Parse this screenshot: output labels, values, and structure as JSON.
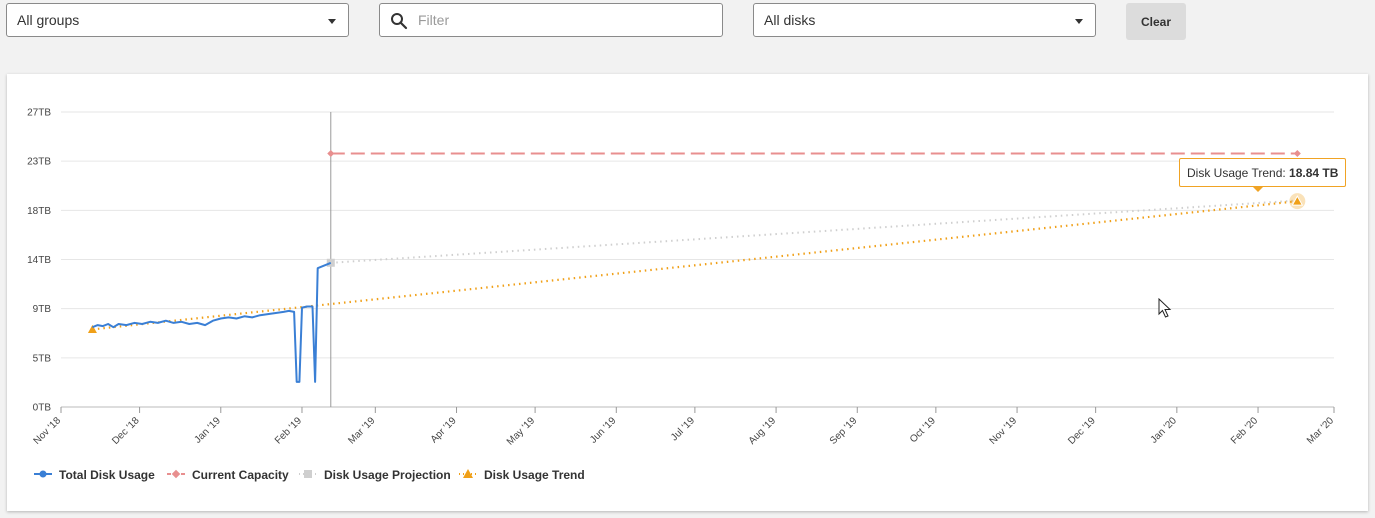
{
  "toolbar": {
    "groups": {
      "value": "All groups"
    },
    "filter": {
      "placeholder": "Filter"
    },
    "disks": {
      "value": "All disks"
    },
    "clear_label": "Clear"
  },
  "tooltip": {
    "label": "Disk Usage Trend: ",
    "value": "18.84 TB"
  },
  "colors": {
    "usage": "#3a7fd5",
    "capacity": "#e88f8f",
    "projection": "#cfcfcf",
    "trend": "#f0a018"
  },
  "chart_data": {
    "type": "line",
    "xlabel": "",
    "ylabel": "",
    "y_ticks": [
      "0TB",
      "5TB",
      "9TB",
      "14TB",
      "18TB",
      "23TB",
      "27TB"
    ],
    "x_ticks": [
      "Nov '18",
      "Dec '18",
      "Jan '19",
      "Feb '19",
      "Mar '19",
      "Apr '19",
      "May '19",
      "Jun '19",
      "Jul '19",
      "Aug '19",
      "Sep '19",
      "Oct '19",
      "Nov '19",
      "Dec '19",
      "Jan '20",
      "Feb '20",
      "Mar '20"
    ],
    "ylim": [
      0,
      27
    ],
    "grid": true,
    "legend_position": "bottom-left",
    "now_marker": "2019-02-12",
    "series": [
      {
        "name": "Total Disk Usage",
        "points": [
          [
            "2018-11-13",
            7.3
          ],
          [
            "2018-11-15",
            7.5
          ],
          [
            "2018-11-17",
            7.4
          ],
          [
            "2018-11-19",
            7.6
          ],
          [
            "2018-11-21",
            7.3
          ],
          [
            "2018-11-23",
            7.6
          ],
          [
            "2018-11-26",
            7.5
          ],
          [
            "2018-11-29",
            7.7
          ],
          [
            "2018-12-02",
            7.6
          ],
          [
            "2018-12-05",
            7.8
          ],
          [
            "2018-12-08",
            7.7
          ],
          [
            "2018-12-11",
            7.9
          ],
          [
            "2018-12-14",
            7.7
          ],
          [
            "2018-12-17",
            7.8
          ],
          [
            "2018-12-20",
            7.6
          ],
          [
            "2018-12-23",
            7.7
          ],
          [
            "2018-12-26",
            7.5
          ],
          [
            "2018-12-29",
            7.9
          ],
          [
            "2019-01-01",
            8.1
          ],
          [
            "2019-01-04",
            8.2
          ],
          [
            "2019-01-07",
            8.1
          ],
          [
            "2019-01-10",
            8.3
          ],
          [
            "2019-01-13",
            8.2
          ],
          [
            "2019-01-16",
            8.4
          ],
          [
            "2019-01-19",
            8.5
          ],
          [
            "2019-01-22",
            8.6
          ],
          [
            "2019-01-25",
            8.7
          ],
          [
            "2019-01-27",
            8.8
          ],
          [
            "2019-01-29",
            8.7
          ],
          [
            "2019-01-30",
            2.3
          ],
          [
            "2019-01-31",
            2.3
          ],
          [
            "2019-02-01",
            9.1
          ],
          [
            "2019-02-03",
            9.2
          ],
          [
            "2019-02-05",
            9.2
          ],
          [
            "2019-02-06",
            2.3
          ],
          [
            "2019-02-07",
            12.7
          ],
          [
            "2019-02-09",
            12.9
          ],
          [
            "2019-02-11",
            13.1
          ],
          [
            "2019-02-12",
            13.2
          ]
        ]
      },
      {
        "name": "Current Capacity",
        "points": [
          [
            "2019-02-12",
            23.2
          ],
          [
            "2020-02-16",
            23.2
          ]
        ]
      },
      {
        "name": "Disk Usage Projection",
        "points": [
          [
            "2019-02-12",
            13.2
          ],
          [
            "2020-02-16",
            18.9
          ]
        ]
      },
      {
        "name": "Disk Usage Trend",
        "points": [
          [
            "2018-11-13",
            7.1
          ],
          [
            "2020-02-16",
            18.84
          ]
        ]
      }
    ]
  }
}
